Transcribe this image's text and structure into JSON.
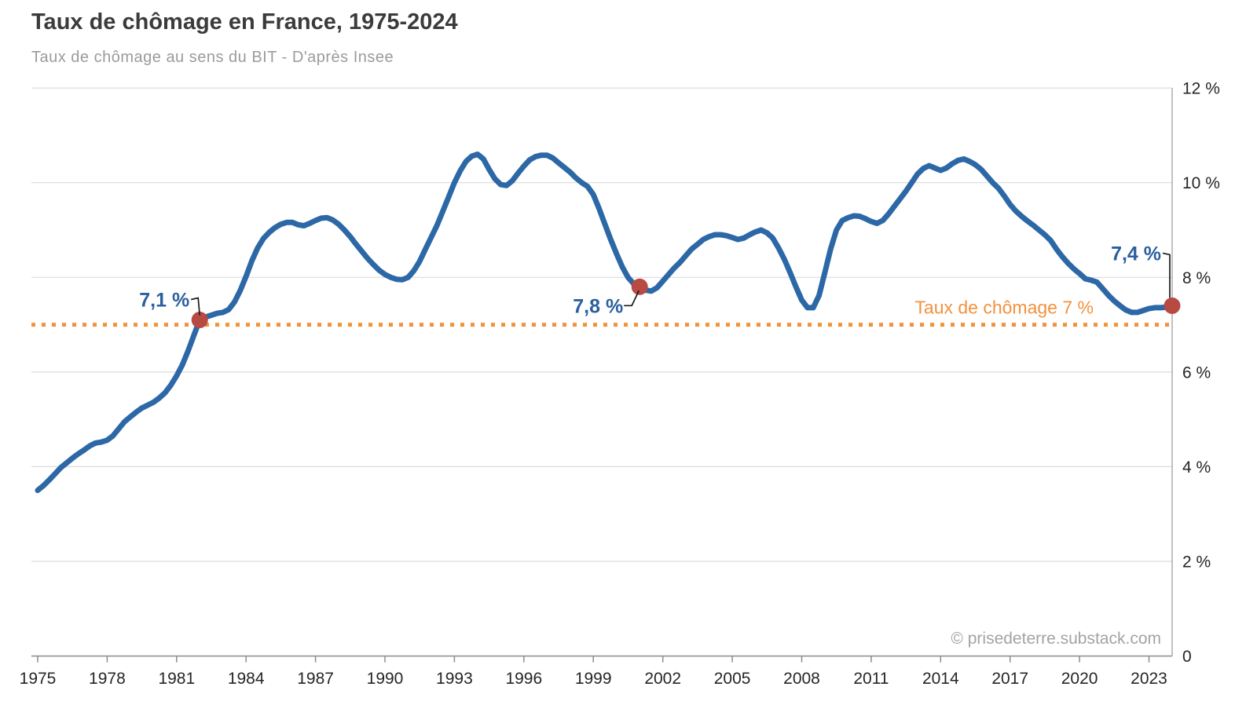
{
  "header": {
    "title": "Taux de chômage en France, 1975-2024",
    "subtitle": "Taux de chômage au sens du BIT - D'après Insee"
  },
  "footer": {
    "credit": "© prisedeterre.substack.com"
  },
  "colors": {
    "line": "#2d68a6",
    "marker": "#b74a42",
    "reference": "#f2923e",
    "annotation_text": "#2b5f9e",
    "axis_text": "#262626",
    "gridline": "#dcdcdc",
    "axis_line": "#8c8c8c",
    "border_line": "#ababab",
    "leader_line": "#1a1a1a"
  },
  "chart_data": {
    "type": "line",
    "title": "Taux de chômage en France, 1975-2024",
    "subtitle": "Taux de chômage au sens du BIT - D'après Insee",
    "xlabel": "",
    "ylabel": "",
    "xlim": [
      1974.73,
      2024.0
    ],
    "ylim": [
      0,
      12
    ],
    "grid": true,
    "legend": false,
    "x_start": 1975.0,
    "x_step": 0.25,
    "xticks": [
      1975,
      1978,
      1981,
      1984,
      1987,
      1990,
      1993,
      1996,
      1999,
      2002,
      2005,
      2008,
      2011,
      2014,
      2017,
      2020,
      2023
    ],
    "yticks": {
      "values": [
        0,
        2,
        4,
        6,
        8,
        10,
        12
      ],
      "labels": [
        "0",
        "2 %",
        "4 %",
        "6 %",
        "8 %",
        "10 %",
        "12 %"
      ]
    },
    "series": [
      {
        "name": "Taux de chômage au sens du BIT",
        "values": [
          3.5,
          3.6,
          3.72,
          3.85,
          3.98,
          4.08,
          4.18,
          4.27,
          4.35,
          4.44,
          4.5,
          4.52,
          4.56,
          4.65,
          4.8,
          4.95,
          5.05,
          5.15,
          5.24,
          5.3,
          5.36,
          5.45,
          5.56,
          5.72,
          5.92,
          6.15,
          6.45,
          6.78,
          7.1,
          7.16,
          7.2,
          7.24,
          7.26,
          7.32,
          7.48,
          7.72,
          8.02,
          8.35,
          8.62,
          8.82,
          8.95,
          9.05,
          9.12,
          9.16,
          9.16,
          9.11,
          9.09,
          9.14,
          9.2,
          9.25,
          9.26,
          9.21,
          9.12,
          9.0,
          8.86,
          8.7,
          8.55,
          8.4,
          8.27,
          8.15,
          8.06,
          8.0,
          7.96,
          7.95,
          8.0,
          8.14,
          8.34,
          8.6,
          8.85,
          9.1,
          9.4,
          9.7,
          10.0,
          10.25,
          10.45,
          10.56,
          10.6,
          10.5,
          10.28,
          10.08,
          9.96,
          9.94,
          10.04,
          10.2,
          10.35,
          10.48,
          10.55,
          10.58,
          10.58,
          10.52,
          10.42,
          10.32,
          10.22,
          10.1,
          10.0,
          9.92,
          9.75,
          9.45,
          9.12,
          8.8,
          8.5,
          8.22,
          8.0,
          7.86,
          7.8,
          7.73,
          7.71,
          7.78,
          7.92,
          8.06,
          8.2,
          8.32,
          8.46,
          8.6,
          8.7,
          8.8,
          8.86,
          8.9,
          8.9,
          8.88,
          8.84,
          8.8,
          8.83,
          8.9,
          8.96,
          9.0,
          8.94,
          8.83,
          8.62,
          8.38,
          8.1,
          7.8,
          7.52,
          7.36,
          7.36,
          7.62,
          8.1,
          8.6,
          9.0,
          9.2,
          9.26,
          9.3,
          9.29,
          9.24,
          9.18,
          9.14,
          9.2,
          9.34,
          9.5,
          9.66,
          9.82,
          10.0,
          10.18,
          10.3,
          10.36,
          10.31,
          10.26,
          10.31,
          10.4,
          10.47,
          10.5,
          10.45,
          10.38,
          10.28,
          10.14,
          10.0,
          9.88,
          9.72,
          9.54,
          9.4,
          9.29,
          9.19,
          9.1,
          9.0,
          8.9,
          8.78,
          8.6,
          8.44,
          8.3,
          8.18,
          8.08,
          7.97,
          7.94,
          7.9,
          7.76,
          7.62,
          7.5,
          7.4,
          7.31,
          7.26,
          7.26,
          7.3,
          7.34,
          7.36,
          7.36,
          7.37,
          7.4
        ]
      }
    ],
    "reference_line": {
      "value": 7,
      "label": "Taux de chômage 7 %"
    },
    "annotations": [
      {
        "label": "7,1 %",
        "x": 1982.0,
        "y": 7.1,
        "label_offset": [
          -13,
          -26
        ],
        "leader": [
          [
            -11,
            -26
          ],
          [
            -2,
            -28
          ],
          [
            0,
            -6
          ]
        ]
      },
      {
        "label": "7,8 %",
        "x": 2001.0,
        "y": 7.8,
        "label_offset": [
          -21,
          24
        ],
        "leader": [
          [
            -20,
            24
          ],
          [
            -10,
            24
          ],
          [
            -1,
            5
          ]
        ]
      },
      {
        "label": "7,4 %",
        "x": 2024.0,
        "y": 7.4,
        "label_offset": [
          -14,
          -67
        ],
        "leader": [
          [
            -12,
            -67
          ],
          [
            -3,
            -65
          ],
          [
            -3,
            -10
          ]
        ]
      }
    ]
  }
}
